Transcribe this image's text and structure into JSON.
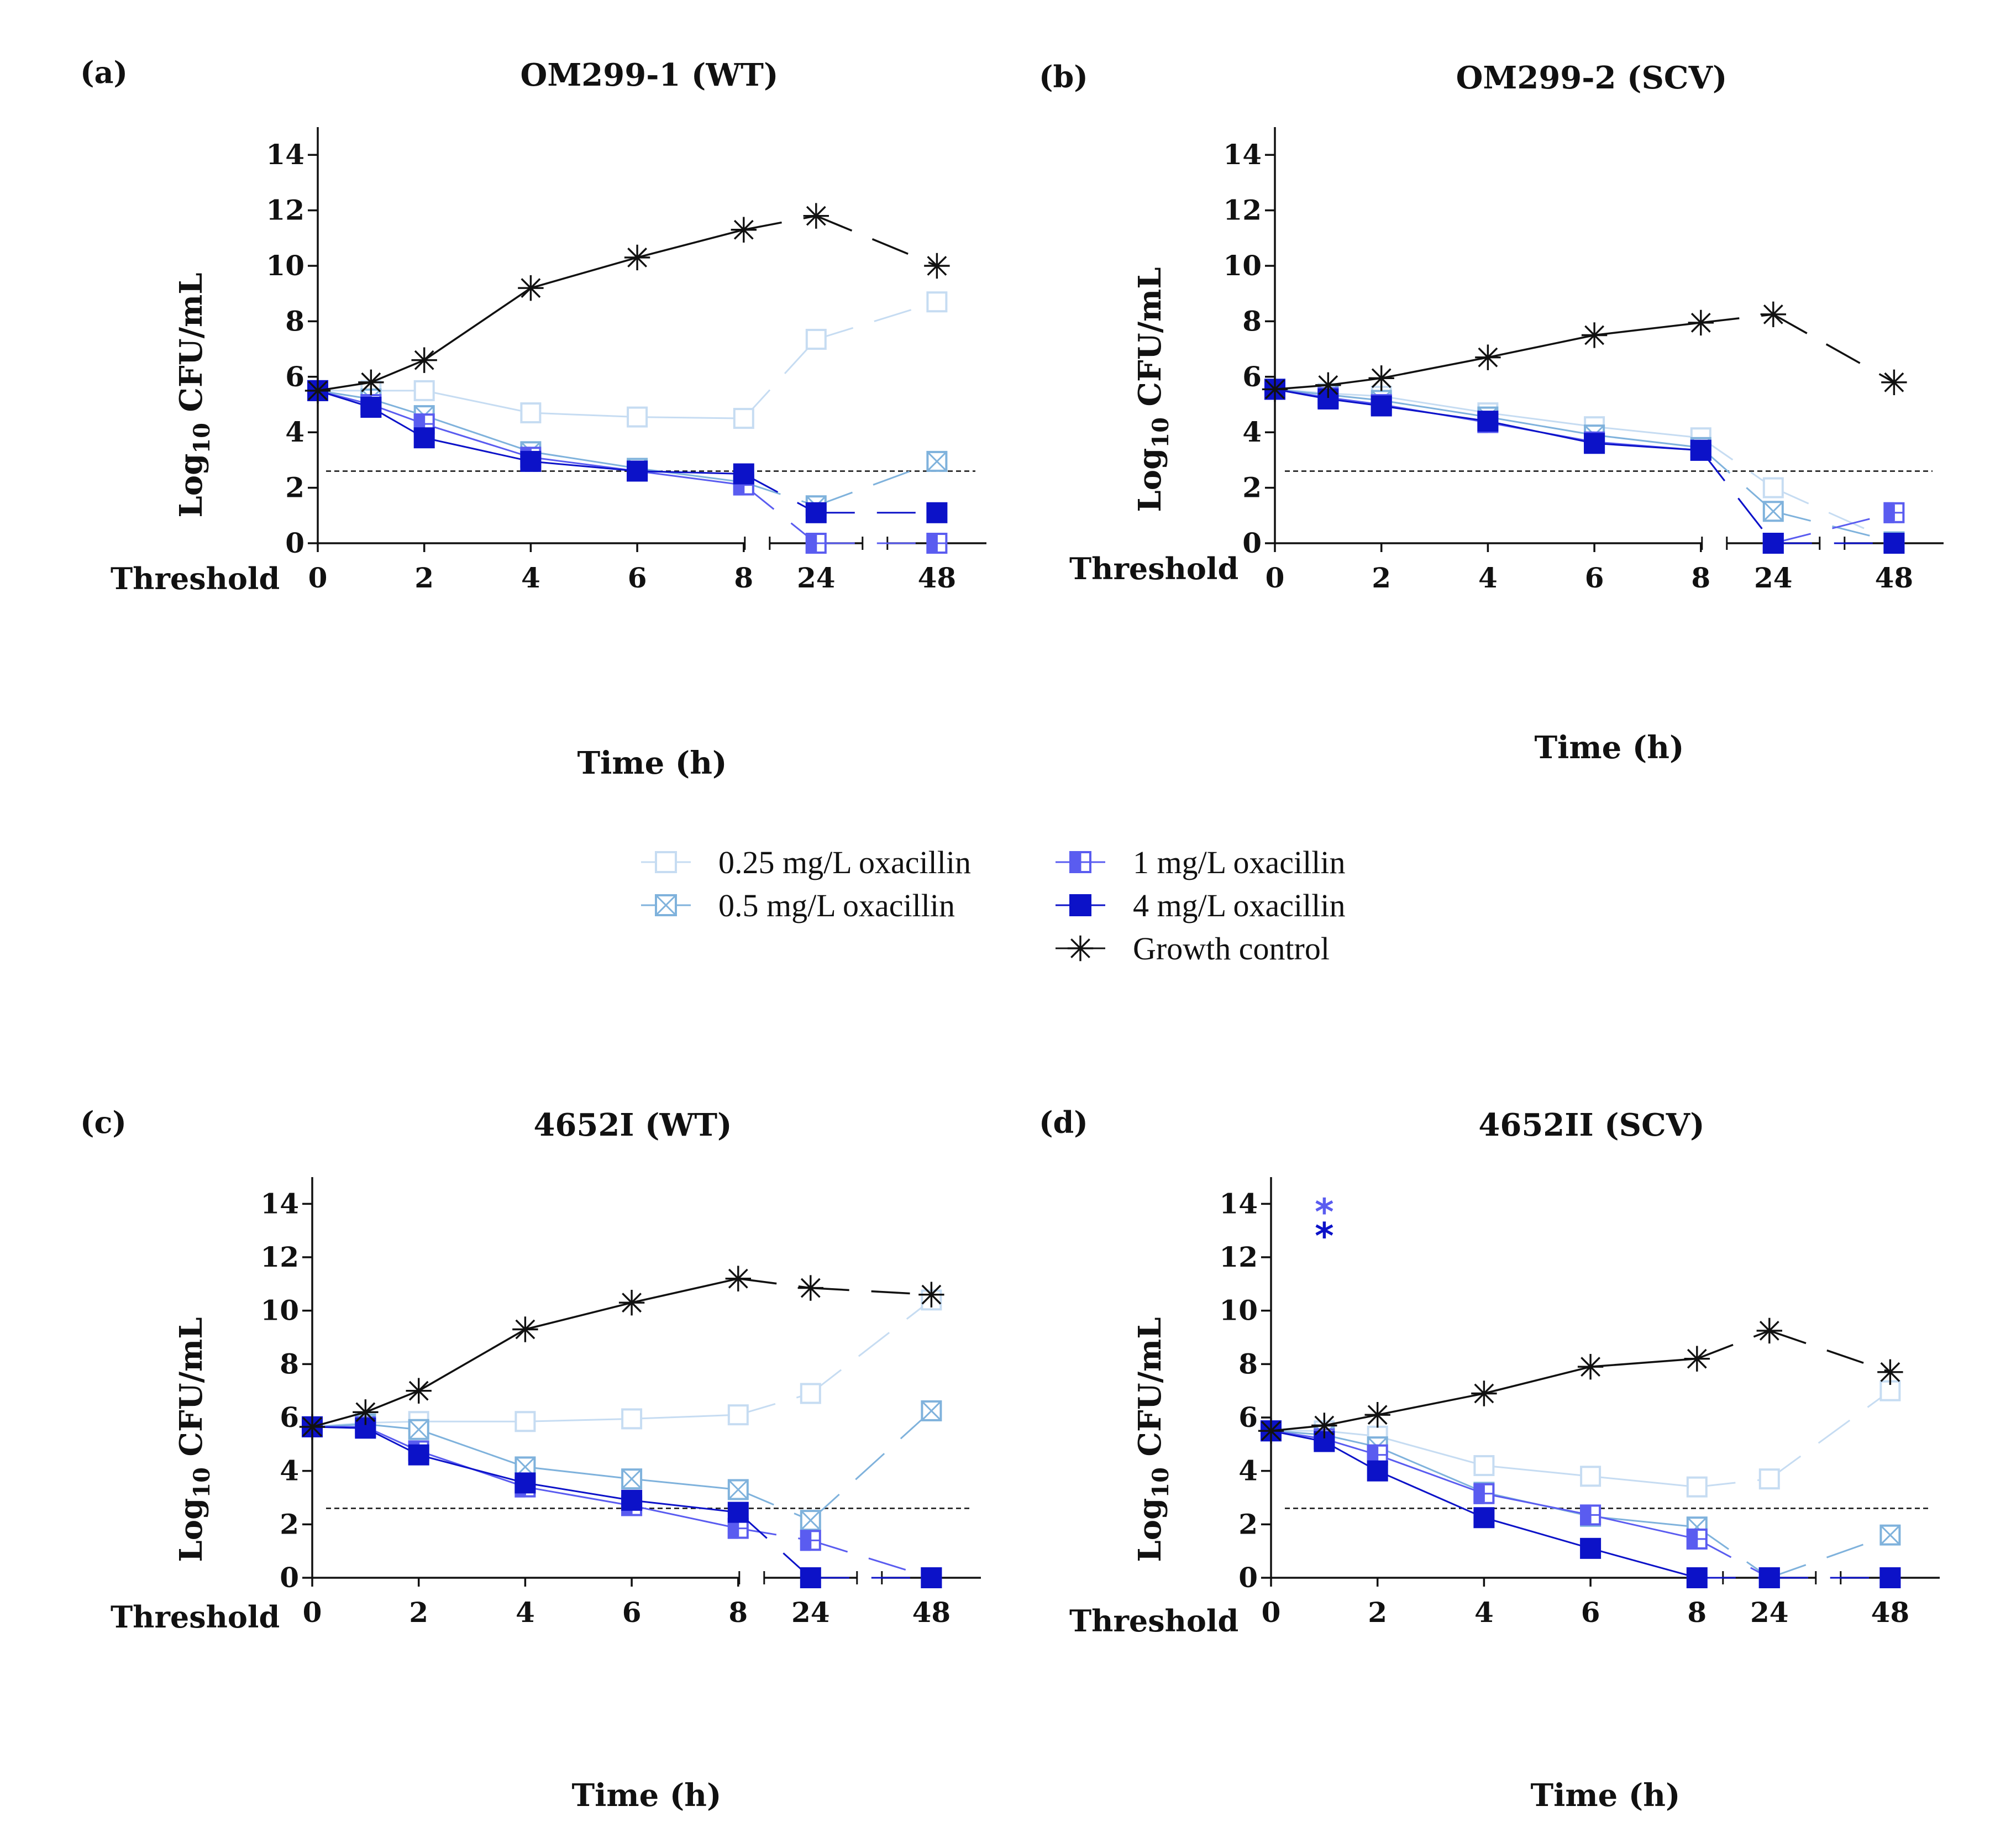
{
  "legend": {
    "entries": [
      {
        "key": "s025",
        "label": "0.25 mg/L oxacillin",
        "color": "#c6dcf2",
        "marker": "open-square"
      },
      {
        "key": "s05",
        "label": "0.5 mg/L oxacillin",
        "color": "#7fb2dc",
        "marker": "crossed-square"
      },
      {
        "key": "s1",
        "label": "1 mg/L oxacillin",
        "color": "#5a5cf0",
        "marker": "half-square"
      },
      {
        "key": "s4",
        "label": "4 mg/L oxacillin",
        "color": "#0c12c8",
        "marker": "filled-square"
      },
      {
        "key": "gc",
        "label": "Growth control",
        "color": "#111111",
        "marker": "asterisk"
      }
    ]
  },
  "chart_data": [
    {
      "type": "line",
      "panel": "(a)",
      "title": "OM299-1 (WT)",
      "xlabel": "Time (h)",
      "ylabel": {
        "base": "Log",
        "sub": "10",
        "rest": " CFU/mL"
      },
      "x": [
        0,
        1,
        2,
        4,
        6,
        8,
        24,
        48
      ],
      "xticks": [
        "0",
        "2",
        "4",
        "6",
        "8",
        "24",
        "48"
      ],
      "xtick_values": [
        0,
        2,
        4,
        6,
        8,
        24,
        48
      ],
      "ylim": [
        0,
        15
      ],
      "yticks": [
        "0",
        "2",
        "4",
        "6",
        "8",
        "10",
        "12",
        "14"
      ],
      "threshold": {
        "value": 2.6,
        "label": "Threshold"
      },
      "series": [
        {
          "key": "s025",
          "name": "0.25 mg/L oxacillin",
          "values": [
            5.5,
            5.5,
            5.5,
            4.7,
            4.55,
            4.5,
            7.35,
            8.7
          ]
        },
        {
          "key": "s05",
          "name": "0.5 mg/L oxacillin",
          "values": [
            5.5,
            5.2,
            4.6,
            3.3,
            2.7,
            2.2,
            1.35,
            2.95
          ]
        },
        {
          "key": "s1",
          "name": "1 mg/L oxacillin",
          "values": [
            5.5,
            5.0,
            4.3,
            3.1,
            2.6,
            2.1,
            0.0,
            0.0
          ]
        },
        {
          "key": "s4",
          "name": "4 mg/L oxacillin",
          "values": [
            5.5,
            4.9,
            3.8,
            2.95,
            2.6,
            2.5,
            1.1,
            1.1
          ]
        },
        {
          "key": "gc",
          "name": "Growth control",
          "values": [
            5.5,
            5.8,
            6.6,
            9.2,
            10.3,
            11.3,
            11.8,
            10.0
          ]
        }
      ],
      "annotations": []
    },
    {
      "type": "line",
      "panel": "(b)",
      "title": "OM299-2 (SCV)",
      "xlabel": "Time (h)",
      "ylabel": {
        "base": "Log",
        "sub": "10",
        "rest": " CFU/mL"
      },
      "x": [
        0,
        1,
        2,
        4,
        6,
        8,
        24,
        48
      ],
      "xticks": [
        "0",
        "2",
        "4",
        "6",
        "8",
        "24",
        "48"
      ],
      "xtick_values": [
        0,
        2,
        4,
        6,
        8,
        24,
        48
      ],
      "ylim": [
        0,
        15
      ],
      "yticks": [
        "0",
        "2",
        "4",
        "6",
        "8",
        "10",
        "12",
        "14"
      ],
      "threshold": {
        "value": 2.6,
        "label": "Threshold"
      },
      "series": [
        {
          "key": "s025",
          "name": "0.25 mg/L oxacillin",
          "values": [
            5.55,
            5.4,
            5.3,
            4.7,
            4.2,
            3.8,
            2.0,
            0.05
          ]
        },
        {
          "key": "s05",
          "name": "0.5 mg/L oxacillin",
          "values": [
            5.55,
            5.35,
            5.15,
            4.55,
            3.9,
            3.45,
            1.15,
            0.05
          ]
        },
        {
          "key": "s1",
          "name": "1 mg/L oxacillin",
          "values": [
            5.55,
            5.25,
            5.0,
            4.35,
            3.65,
            3.35,
            0.0,
            1.1
          ]
        },
        {
          "key": "s4",
          "name": "4 mg/L oxacillin",
          "values": [
            5.55,
            5.2,
            4.95,
            4.4,
            3.6,
            3.35,
            0.0,
            0.0
          ]
        },
        {
          "key": "gc",
          "name": "Growth control",
          "values": [
            5.55,
            5.7,
            5.95,
            6.7,
            7.5,
            7.95,
            8.25,
            5.8
          ]
        }
      ],
      "annotations": []
    },
    {
      "type": "line",
      "panel": "(c)",
      "title": "4652I (WT)",
      "xlabel": "Time (h)",
      "ylabel": {
        "base": "Log",
        "sub": "10",
        "rest": " CFU/mL"
      },
      "x": [
        0,
        1,
        2,
        4,
        6,
        8,
        24,
        48
      ],
      "xticks": [
        "0",
        "2",
        "4",
        "6",
        "8",
        "24",
        "48"
      ],
      "xtick_values": [
        0,
        2,
        4,
        6,
        8,
        24,
        48
      ],
      "ylim": [
        0,
        15
      ],
      "yticks": [
        "0",
        "2",
        "4",
        "6",
        "8",
        "10",
        "12",
        "14"
      ],
      "threshold": {
        "value": 2.6,
        "label": "Threshold"
      },
      "series": [
        {
          "key": "s025",
          "name": "0.25 mg/L oxacillin",
          "values": [
            5.65,
            5.8,
            5.85,
            5.85,
            5.95,
            6.1,
            6.9,
            10.4
          ]
        },
        {
          "key": "s05",
          "name": "0.5 mg/L oxacillin",
          "values": [
            5.65,
            5.75,
            5.55,
            4.15,
            3.7,
            3.3,
            2.15,
            6.25
          ]
        },
        {
          "key": "s1",
          "name": "1 mg/L oxacillin",
          "values": [
            5.65,
            5.65,
            4.75,
            3.4,
            2.7,
            1.85,
            1.4,
            0.0
          ]
        },
        {
          "key": "s4",
          "name": "4 mg/L oxacillin",
          "values": [
            5.65,
            5.6,
            4.6,
            3.55,
            2.9,
            2.45,
            0.0,
            0.0
          ]
        },
        {
          "key": "gc",
          "name": "Growth control",
          "values": [
            5.65,
            6.2,
            7.0,
            9.3,
            10.3,
            11.2,
            10.85,
            10.6
          ]
        }
      ],
      "annotations": []
    },
    {
      "type": "line",
      "panel": "(d)",
      "title": "4652II (SCV)",
      "xlabel": "Time (h)",
      "ylabel": {
        "base": "Log",
        "sub": "10",
        "rest": " CFU/mL"
      },
      "x": [
        0,
        1,
        2,
        4,
        6,
        8,
        24,
        48
      ],
      "xticks": [
        "0",
        "2",
        "4",
        "6",
        "8",
        "24",
        "48"
      ],
      "xtick_values": [
        0,
        2,
        4,
        6,
        8,
        24,
        48
      ],
      "ylim": [
        0,
        15
      ],
      "yticks": [
        "0",
        "2",
        "4",
        "6",
        "8",
        "10",
        "12",
        "14"
      ],
      "threshold": {
        "value": 2.6,
        "label": "Threshold"
      },
      "series": [
        {
          "key": "s025",
          "name": "0.25 mg/L oxacillin",
          "values": [
            5.5,
            5.5,
            5.3,
            4.2,
            3.8,
            3.4,
            3.7,
            7.0
          ]
        },
        {
          "key": "s05",
          "name": "0.5 mg/L oxacillin",
          "values": [
            5.5,
            5.35,
            4.9,
            3.2,
            2.3,
            1.9,
            0.0,
            1.6
          ]
        },
        {
          "key": "s1",
          "name": "1 mg/L oxacillin",
          "values": [
            5.5,
            5.2,
            4.6,
            3.15,
            2.35,
            1.45,
            0.0,
            0.0
          ]
        },
        {
          "key": "s4",
          "name": "4 mg/L oxacillin",
          "values": [
            5.5,
            5.1,
            4.0,
            2.25,
            1.1,
            0.0,
            0.0,
            0.0
          ]
        },
        {
          "key": "gc",
          "name": "Growth control",
          "values": [
            5.5,
            5.7,
            6.1,
            6.9,
            7.9,
            8.2,
            9.25,
            7.7
          ]
        }
      ],
      "annotations": [
        {
          "text": "*",
          "color": "#5a5cf0",
          "x": 1,
          "y": 13.8
        },
        {
          "text": "*",
          "color": "#0c12c8",
          "x": 1,
          "y": 12.9
        }
      ]
    }
  ]
}
